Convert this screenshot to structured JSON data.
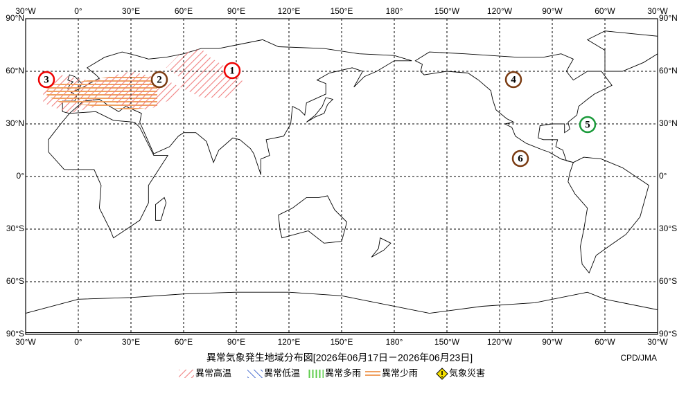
{
  "map": {
    "lon_labels": [
      "30°W",
      "0°",
      "30°E",
      "60°E",
      "90°E",
      "120°E",
      "150°E",
      "180°",
      "150°W",
      "120°W",
      "90°W",
      "60°W",
      "30°W"
    ],
    "lat_labels": [
      "90°N",
      "60°N",
      "30°N",
      "0°",
      "30°S",
      "60°S",
      "90°S"
    ],
    "markers": [
      "1",
      "2",
      "3",
      "4",
      "5",
      "6"
    ],
    "title": "異常気象発生地域分布図[2026年06月17日－2026年06月23日]",
    "credit": "CPD/JMA",
    "legend": [
      "異常高温",
      "異常低温",
      "異常多雨",
      "異常少雨",
      "気象災害"
    ]
  }
}
